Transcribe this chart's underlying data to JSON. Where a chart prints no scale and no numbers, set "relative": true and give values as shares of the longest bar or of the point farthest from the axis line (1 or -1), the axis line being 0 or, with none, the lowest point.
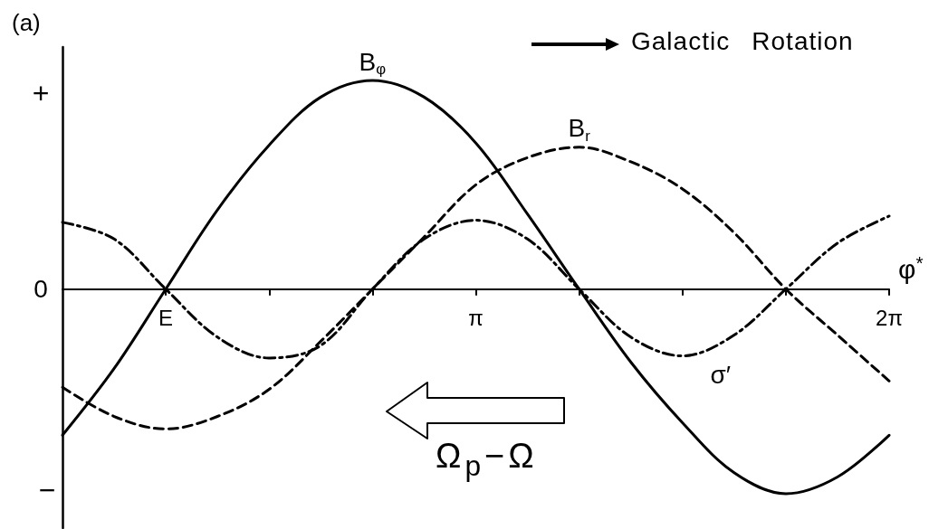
{
  "chart_data": {
    "type": "line",
    "relative": true,
    "title": "(a)",
    "xlabel": "φ$^{*}$",
    "x": [
      0,
      0.393,
      0.785,
      1.178,
      1.571,
      1.963,
      2.356,
      2.749,
      3.142,
      3.534,
      3.927,
      4.32,
      4.712,
      5.105,
      5.498,
      5.89,
      6.283
    ],
    "series": [
      {
        "name": "B$_{φ}$",
        "color": "#000000",
        "line_style": "solid",
        "values": [
          -0.7,
          -0.38,
          0,
          0.38,
          0.69,
          0.92,
          1,
          0.92,
          0.7,
          0.36,
          0,
          -0.35,
          -0.64,
          -0.88,
          -0.98,
          -0.9,
          -0.7
        ]
      },
      {
        "name": "B$_{r}$",
        "color": "#000000",
        "line_style": "dashed",
        "values": [
          -0.47,
          -0.61,
          -0.67,
          -0.61,
          -0.48,
          -0.25,
          0,
          0.25,
          0.5,
          0.63,
          0.68,
          0.61,
          0.48,
          0.27,
          0,
          -0.22,
          -0.44
        ]
      },
      {
        "name": "σ′",
        "color": "#000000",
        "line_style": "dashdot",
        "values": [
          0.32,
          0.24,
          0,
          -0.23,
          -0.33,
          -0.27,
          0,
          0.24,
          0.33,
          0.24,
          0,
          -0.23,
          -0.32,
          -0.22,
          0,
          0.22,
          0.35
        ]
      }
    ],
    "xlim": [
      0,
      6.283
    ],
    "xticks": [
      {
        "value": 0.785,
        "label": "E"
      },
      {
        "value": 1.571,
        "label": null
      },
      {
        "value": 2.356,
        "label": null
      },
      {
        "value": 3.142,
        "label": "π"
      },
      {
        "value": 3.927,
        "label": null
      },
      {
        "value": 4.712,
        "label": null
      },
      {
        "value": 5.498,
        "label": null
      },
      {
        "value": 6.283,
        "label": "2π"
      }
    ],
    "annotations": [
      "+",
      "0",
      "−",
      "Galactic Rotation",
      "Ω$_{p}$−Ω"
    ]
  }
}
